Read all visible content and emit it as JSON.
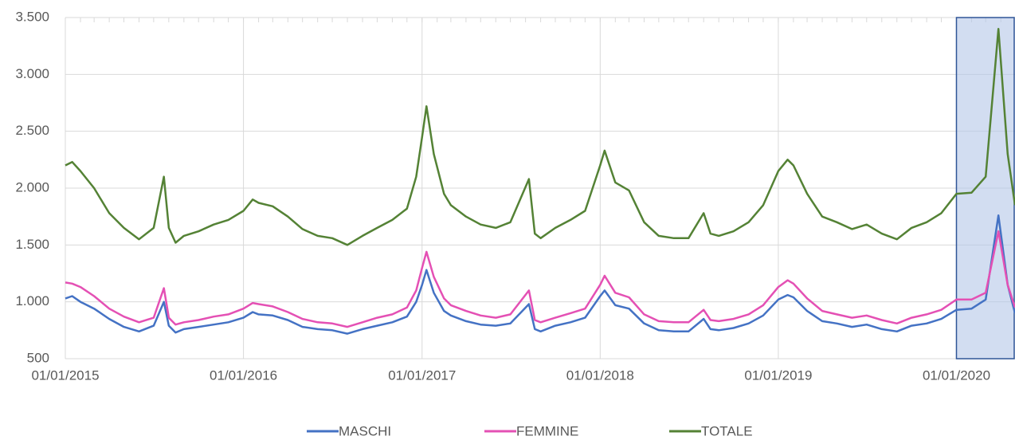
{
  "chart_data": {
    "type": "line",
    "x": [
      "01/01/2015",
      "15/01/2015",
      "01/02/2015",
      "01/03/2015",
      "01/04/2015",
      "01/05/2015",
      "01/06/2015",
      "01/07/2015",
      "22/07/2015",
      "01/08/2015",
      "15/08/2015",
      "01/09/2015",
      "01/10/2015",
      "01/11/2015",
      "01/12/2015",
      "01/01/2016",
      "20/01/2016",
      "01/02/2016",
      "01/03/2016",
      "01/04/2016",
      "01/05/2016",
      "01/06/2016",
      "01/07/2016",
      "01/08/2016",
      "01/09/2016",
      "01/10/2016",
      "01/11/2016",
      "01/12/2016",
      "20/12/2016",
      "01/01/2017",
      "10/01/2017",
      "25/01/2017",
      "15/02/2017",
      "01/03/2017",
      "01/04/2017",
      "01/05/2017",
      "01/06/2017",
      "01/07/2017",
      "08/08/2017",
      "20/08/2017",
      "01/09/2017",
      "01/10/2017",
      "01/11/2017",
      "01/12/2017",
      "01/01/2018",
      "10/01/2018",
      "01/02/2018",
      "01/03/2018",
      "01/04/2018",
      "01/05/2018",
      "01/06/2018",
      "01/07/2018",
      "01/08/2018",
      "15/08/2018",
      "01/09/2018",
      "01/10/2018",
      "01/11/2018",
      "01/12/2018",
      "01/01/2019",
      "20/01/2019",
      "01/02/2019",
      "01/03/2019",
      "01/04/2019",
      "01/05/2019",
      "01/06/2019",
      "01/07/2019",
      "01/08/2019",
      "01/09/2019",
      "01/10/2019",
      "01/11/2019",
      "01/12/2019",
      "01/01/2020",
      "01/02/2020",
      "01/03/2020",
      "27/03/2020",
      "15/04/2020",
      "30/04/2020"
    ],
    "series": [
      {
        "name": "MASCHI",
        "color": "#4472c4",
        "values": [
          1030,
          1050,
          1000,
          940,
          850,
          780,
          740,
          790,
          1000,
          790,
          730,
          760,
          780,
          800,
          820,
          860,
          910,
          890,
          880,
          840,
          780,
          760,
          750,
          720,
          760,
          790,
          820,
          870,
          1000,
          1150,
          1280,
          1080,
          920,
          880,
          830,
          800,
          790,
          810,
          980,
          760,
          740,
          790,
          820,
          860,
          1050,
          1100,
          970,
          940,
          810,
          750,
          740,
          740,
          850,
          760,
          750,
          770,
          810,
          880,
          1020,
          1060,
          1040,
          920,
          830,
          810,
          780,
          800,
          760,
          740,
          790,
          810,
          850,
          930,
          940,
          1020,
          1760,
          1150,
          900
        ]
      },
      {
        "name": "FEMMINE",
        "color": "#e450b4",
        "values": [
          1170,
          1160,
          1130,
          1050,
          940,
          870,
          820,
          860,
          1120,
          860,
          800,
          820,
          840,
          870,
          890,
          940,
          990,
          980,
          960,
          910,
          850,
          820,
          810,
          780,
          820,
          860,
          890,
          950,
          1100,
          1300,
          1440,
          1220,
          1030,
          970,
          920,
          880,
          860,
          890,
          1100,
          840,
          820,
          860,
          900,
          940,
          1150,
          1230,
          1080,
          1040,
          890,
          830,
          820,
          820,
          930,
          840,
          830,
          850,
          890,
          970,
          1130,
          1190,
          1160,
          1030,
          920,
          890,
          860,
          880,
          840,
          810,
          860,
          890,
          930,
          1020,
          1020,
          1080,
          1620,
          1150,
          950
        ]
      },
      {
        "name": "TOTALE",
        "color": "#548235",
        "values": [
          2200,
          2230,
          2150,
          2000,
          1780,
          1650,
          1550,
          1650,
          2100,
          1650,
          1520,
          1580,
          1620,
          1680,
          1720,
          1800,
          1900,
          1870,
          1840,
          1750,
          1640,
          1580,
          1560,
          1500,
          1580,
          1650,
          1720,
          1820,
          2100,
          2450,
          2720,
          2300,
          1950,
          1850,
          1750,
          1680,
          1650,
          1700,
          2080,
          1600,
          1560,
          1650,
          1720,
          1800,
          2200,
          2330,
          2050,
          1980,
          1700,
          1580,
          1560,
          1560,
          1780,
          1600,
          1580,
          1620,
          1700,
          1850,
          2150,
          2250,
          2200,
          1950,
          1750,
          1700,
          1640,
          1680,
          1600,
          1550,
          1650,
          1700,
          1780,
          1950,
          1960,
          2100,
          3400,
          2300,
          1850
        ]
      }
    ],
    "xlim": [
      "01/01/2015",
      "30/04/2020"
    ],
    "xticks": [
      "01/01/2015",
      "01/01/2016",
      "01/01/2017",
      "01/01/2018",
      "01/01/2019",
      "01/01/2020"
    ],
    "ylim": [
      500,
      3500
    ],
    "yticks": [
      500,
      {
        "value": 1000,
        "label": "1.000"
      },
      {
        "value": 1500,
        "label": "1.500"
      },
      {
        "value": 2000,
        "label": "2.000"
      },
      {
        "value": 2500,
        "label": "2.500"
      },
      {
        "value": 3000,
        "label": "3.000"
      },
      {
        "value": 3500,
        "label": "3.500"
      }
    ],
    "grid": true,
    "legend": "bottom"
  }
}
